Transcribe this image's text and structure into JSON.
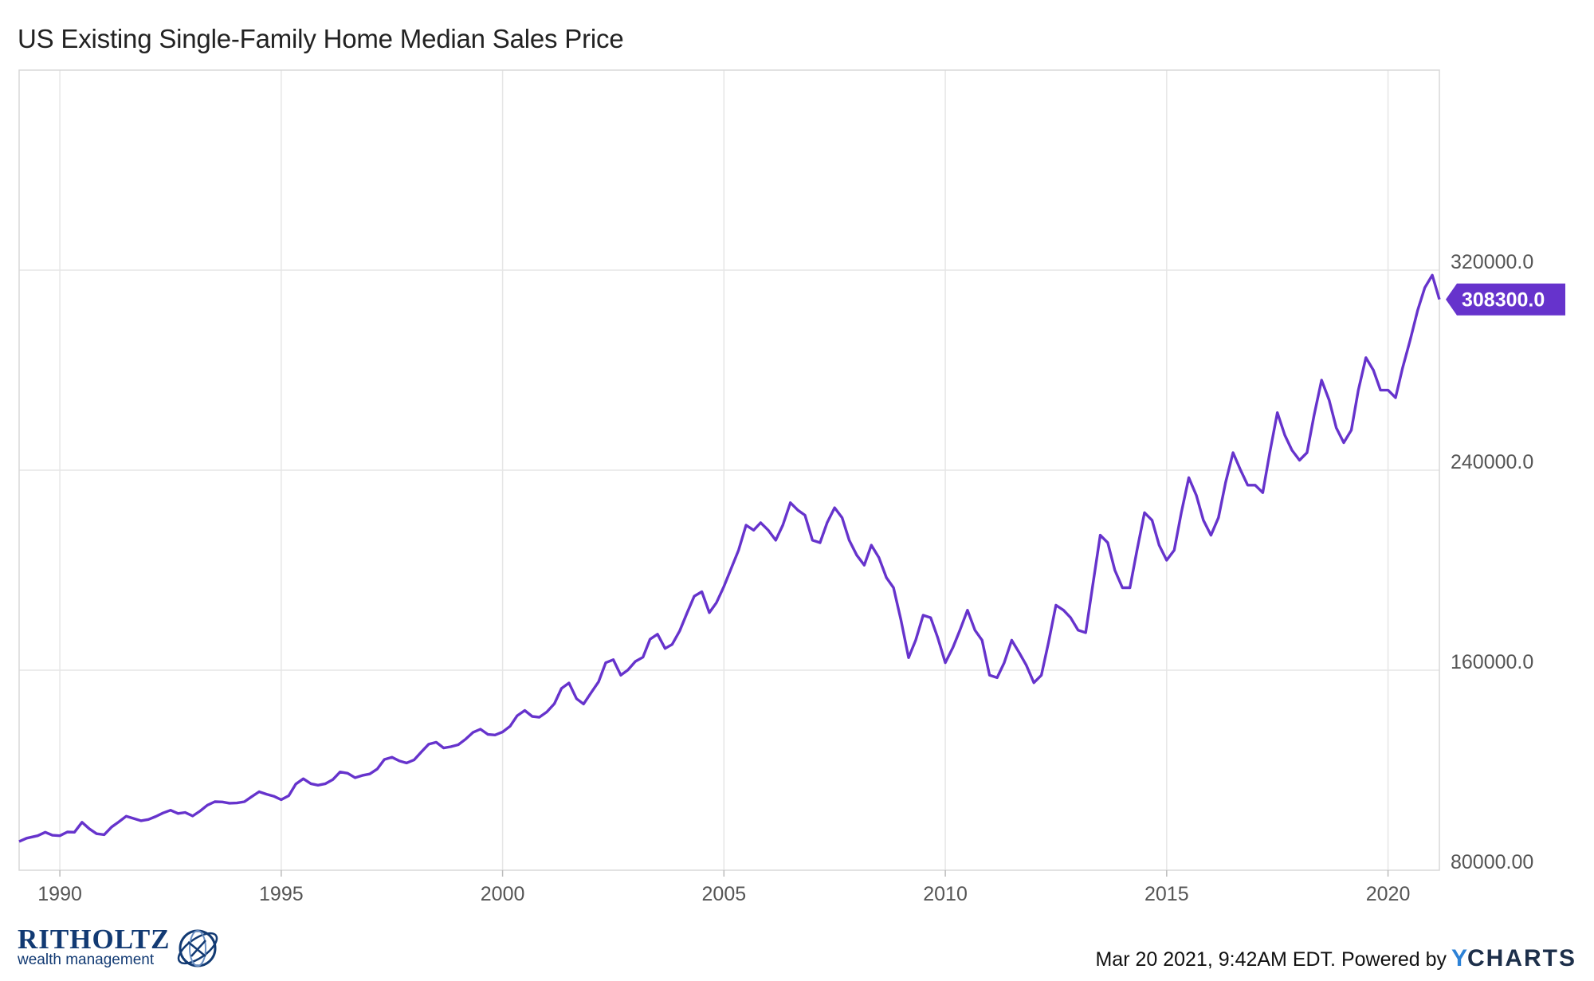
{
  "page": {
    "title": "US Existing Single-Family Home Median Sales Price"
  },
  "footer": {
    "brand": "RITHOLTZ",
    "brand_sub": "wealth management",
    "timestamp_text": "Mar 20 2021, 9:42AM EDT. Powered by",
    "ycharts_y": "Y",
    "ycharts_rest": "CHARTS"
  },
  "chart_data": {
    "type": "line",
    "title": "US Existing Single-Family Home Median Sales Price",
    "xlabel": "",
    "ylabel": "",
    "xlim": [
      1989.08,
      2021.16
    ],
    "ylim": [
      80000,
      400000
    ],
    "grid": true,
    "x_ticks": [
      1990,
      1995,
      2000,
      2005,
      2010,
      2015,
      2020
    ],
    "x_tick_labels": [
      "1990",
      "1995",
      "2000",
      "2005",
      "2010",
      "2015",
      "2020"
    ],
    "y_ticks": [
      80000,
      160000,
      240000,
      320000
    ],
    "y_tick_labels": [
      "80000.00",
      "160000.0",
      "240000.0",
      "320000.0"
    ],
    "last_value_label": "308300.0",
    "series_color": "#6633cc",
    "series": [
      {
        "name": "",
        "points": [
          [
            1989.08,
            91500
          ],
          [
            1989.25,
            92800
          ],
          [
            1989.5,
            93800
          ],
          [
            1989.67,
            95200
          ],
          [
            1989.83,
            94000
          ],
          [
            1990.0,
            93800
          ],
          [
            1990.17,
            95300
          ],
          [
            1990.33,
            95200
          ],
          [
            1990.5,
            99200
          ],
          [
            1990.67,
            96500
          ],
          [
            1990.83,
            94600
          ],
          [
            1991.0,
            94200
          ],
          [
            1991.17,
            97300
          ],
          [
            1991.33,
            99300
          ],
          [
            1991.5,
            101600
          ],
          [
            1991.67,
            100700
          ],
          [
            1991.83,
            99800
          ],
          [
            1992.0,
            100300
          ],
          [
            1992.17,
            101500
          ],
          [
            1992.33,
            102900
          ],
          [
            1992.5,
            104000
          ],
          [
            1992.67,
            102700
          ],
          [
            1992.83,
            103100
          ],
          [
            1993.0,
            101700
          ],
          [
            1993.17,
            103700
          ],
          [
            1993.33,
            106000
          ],
          [
            1993.5,
            107400
          ],
          [
            1993.67,
            107300
          ],
          [
            1993.83,
            106800
          ],
          [
            1994.0,
            106900
          ],
          [
            1994.17,
            107400
          ],
          [
            1994.33,
            109400
          ],
          [
            1994.5,
            111400
          ],
          [
            1994.67,
            110400
          ],
          [
            1994.83,
            109600
          ],
          [
            1995.0,
            108200
          ],
          [
            1995.17,
            109800
          ],
          [
            1995.33,
            114500
          ],
          [
            1995.5,
            116600
          ],
          [
            1995.67,
            114600
          ],
          [
            1995.83,
            114000
          ],
          [
            1996.0,
            114600
          ],
          [
            1996.17,
            116300
          ],
          [
            1996.33,
            119300
          ],
          [
            1996.5,
            118800
          ],
          [
            1996.67,
            117000
          ],
          [
            1996.83,
            117900
          ],
          [
            1997.0,
            118500
          ],
          [
            1997.17,
            120500
          ],
          [
            1997.33,
            124300
          ],
          [
            1997.5,
            125200
          ],
          [
            1997.67,
            123700
          ],
          [
            1997.83,
            122900
          ],
          [
            1998.0,
            124100
          ],
          [
            1998.17,
            127400
          ],
          [
            1998.33,
            130400
          ],
          [
            1998.5,
            131200
          ],
          [
            1998.67,
            128900
          ],
          [
            1998.83,
            129400
          ],
          [
            1999.0,
            130200
          ],
          [
            1999.17,
            132500
          ],
          [
            1999.33,
            135100
          ],
          [
            1999.5,
            136400
          ],
          [
            1999.67,
            134300
          ],
          [
            1999.83,
            134100
          ],
          [
            2000.0,
            135300
          ],
          [
            2000.17,
            137600
          ],
          [
            2000.33,
            141800
          ],
          [
            2000.5,
            143900
          ],
          [
            2000.67,
            141500
          ],
          [
            2000.83,
            141200
          ],
          [
            2001.0,
            143300
          ],
          [
            2001.17,
            146600
          ],
          [
            2001.33,
            152700
          ],
          [
            2001.5,
            154900
          ],
          [
            2001.67,
            148600
          ],
          [
            2001.83,
            146500
          ],
          [
            2002.0,
            151000
          ],
          [
            2002.17,
            155400
          ],
          [
            2002.33,
            163000
          ],
          [
            2002.5,
            164200
          ],
          [
            2002.67,
            158000
          ],
          [
            2002.83,
            160100
          ],
          [
            2003.0,
            163500
          ],
          [
            2003.17,
            165200
          ],
          [
            2003.33,
            172400
          ],
          [
            2003.5,
            174400
          ],
          [
            2003.67,
            168700
          ],
          [
            2003.83,
            170300
          ],
          [
            2004.0,
            175700
          ],
          [
            2004.17,
            183000
          ],
          [
            2004.33,
            189600
          ],
          [
            2004.5,
            191400
          ],
          [
            2004.67,
            183000
          ],
          [
            2004.83,
            187000
          ],
          [
            2005.0,
            193500
          ],
          [
            2005.17,
            201000
          ],
          [
            2005.33,
            208000
          ],
          [
            2005.5,
            218000
          ],
          [
            2005.67,
            216000
          ],
          [
            2005.83,
            219000
          ],
          [
            2006.0,
            216000
          ],
          [
            2006.17,
            212000
          ],
          [
            2006.33,
            218000
          ],
          [
            2006.5,
            227000
          ],
          [
            2006.67,
            224000
          ],
          [
            2006.83,
            222000
          ],
          [
            2007.0,
            212000
          ],
          [
            2007.17,
            211000
          ],
          [
            2007.33,
            219000
          ],
          [
            2007.5,
            225000
          ],
          [
            2007.67,
            221000
          ],
          [
            2007.83,
            212000
          ],
          [
            2008.0,
            206000
          ],
          [
            2008.17,
            202000
          ],
          [
            2008.33,
            210000
          ],
          [
            2008.5,
            205000
          ],
          [
            2008.67,
            197000
          ],
          [
            2008.83,
            193000
          ],
          [
            2009.0,
            180000
          ],
          [
            2009.17,
            165000
          ],
          [
            2009.33,
            172000
          ],
          [
            2009.5,
            182000
          ],
          [
            2009.67,
            181000
          ],
          [
            2009.83,
            173000
          ],
          [
            2010.0,
            163000
          ],
          [
            2010.17,
            169000
          ],
          [
            2010.33,
            176000
          ],
          [
            2010.5,
            184000
          ],
          [
            2010.67,
            176000
          ],
          [
            2010.83,
            172000
          ],
          [
            2011.0,
            158000
          ],
          [
            2011.17,
            157000
          ],
          [
            2011.33,
            163000
          ],
          [
            2011.5,
            172000
          ],
          [
            2011.67,
            167000
          ],
          [
            2011.83,
            162000
          ],
          [
            2012.0,
            155000
          ],
          [
            2012.17,
            158000
          ],
          [
            2012.33,
            171000
          ],
          [
            2012.5,
            186000
          ],
          [
            2012.67,
            184000
          ],
          [
            2012.83,
            181000
          ],
          [
            2013.0,
            176000
          ],
          [
            2013.17,
            175000
          ],
          [
            2013.33,
            194000
          ],
          [
            2013.5,
            214000
          ],
          [
            2013.67,
            211000
          ],
          [
            2013.83,
            200000
          ],
          [
            2014.0,
            193000
          ],
          [
            2014.17,
            193000
          ],
          [
            2014.33,
            208000
          ],
          [
            2014.5,
            223000
          ],
          [
            2014.67,
            220000
          ],
          [
            2014.83,
            210000
          ],
          [
            2015.0,
            204000
          ],
          [
            2015.17,
            208000
          ],
          [
            2015.33,
            223000
          ],
          [
            2015.5,
            237000
          ],
          [
            2015.67,
            230000
          ],
          [
            2015.83,
            220000
          ],
          [
            2016.0,
            214000
          ],
          [
            2016.17,
            221000
          ],
          [
            2016.33,
            235000
          ],
          [
            2016.5,
            247000
          ],
          [
            2016.67,
            240000
          ],
          [
            2016.83,
            234000
          ],
          [
            2017.0,
            234000
          ],
          [
            2017.17,
            231000
          ],
          [
            2017.33,
            247000
          ],
          [
            2017.5,
            263000
          ],
          [
            2017.67,
            254000
          ],
          [
            2017.83,
            248000
          ],
          [
            2018.0,
            244000
          ],
          [
            2018.17,
            247000
          ],
          [
            2018.33,
            262000
          ],
          [
            2018.5,
            276000
          ],
          [
            2018.67,
            268000
          ],
          [
            2018.83,
            257000
          ],
          [
            2019.0,
            251000
          ],
          [
            2019.17,
            256000
          ],
          [
            2019.33,
            272000
          ],
          [
            2019.5,
            285000
          ],
          [
            2019.67,
            280000
          ],
          [
            2019.83,
            272000
          ],
          [
            2020.0,
            272000
          ],
          [
            2020.17,
            269000
          ],
          [
            2020.33,
            281000
          ],
          [
            2020.5,
            292000
          ],
          [
            2020.67,
            304000
          ],
          [
            2020.83,
            313000
          ],
          [
            2021.0,
            318000
          ],
          [
            2021.16,
            308300
          ]
        ]
      }
    ]
  }
}
